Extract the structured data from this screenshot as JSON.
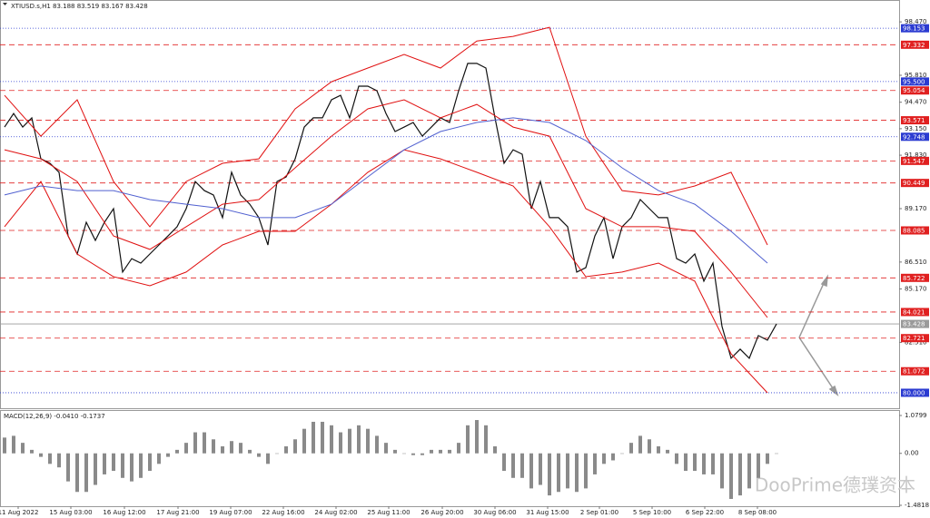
{
  "chart_data": [
    {
      "type": "line",
      "title": "XTIUSD.s,H1  83.188 83.519 83.167 83.428",
      "watermark": "DooPrime德璞资本",
      "xlim": [
        -0.5,
        98.5
      ],
      "ylim": [
        79.23,
        99.56
      ],
      "xticks": [
        {
          "value": 1.5,
          "label": "11 Aug 2022"
        },
        {
          "value": 7.3,
          "label": "15 Aug 03:00"
        },
        {
          "value": 13.2,
          "label": "16 Aug 12:00"
        },
        {
          "value": 19.1,
          "label": "17 Aug 21:00"
        },
        {
          "value": 24.9,
          "label": "19 Aug 07:00"
        },
        {
          "value": 30.7,
          "label": "22 Aug 16:00"
        },
        {
          "value": 36.5,
          "label": "24 Aug 02:00"
        },
        {
          "value": 42.3,
          "label": "25 Aug 11:00"
        },
        {
          "value": 48.2,
          "label": "26 Aug 20:00"
        },
        {
          "value": 54,
          "label": "30 Aug 06:00"
        },
        {
          "value": 59.8,
          "label": "31 Aug 15:00"
        },
        {
          "value": 65.5,
          "label": "2 Sep 01:00"
        },
        {
          "value": 71.3,
          "label": "5 Sep 10:00"
        },
        {
          "value": 77.1,
          "label": "6 Sep 22:00"
        },
        {
          "value": 82.9,
          "label": "8 Sep 08:00"
        }
      ],
      "yticks": [
        {
          "value": 98.47,
          "label": "98.470"
        },
        {
          "value": 95.81,
          "label": "95.810"
        },
        {
          "value": 94.47,
          "label": "94.470"
        },
        {
          "value": 93.15,
          "label": "93.150"
        },
        {
          "value": 91.83,
          "label": "91.830"
        },
        {
          "value": 89.17,
          "label": "89.170"
        },
        {
          "value": 86.51,
          "label": "86.510"
        },
        {
          "value": 85.17,
          "label": "85.170"
        },
        {
          "value": 82.51,
          "label": "82.510"
        }
      ],
      "levels": [
        {
          "value": 98.153,
          "color": "#2b3bd1"
        },
        {
          "value": 97.332,
          "color": "#e02020"
        },
        {
          "value": 95.5,
          "label": "95.500",
          "color": "#2b3bd1"
        },
        {
          "value": 95.054,
          "color": "#e02020"
        },
        {
          "value": 93.571,
          "color": "#e02020"
        },
        {
          "value": 92.748,
          "color": "#2b3bd1"
        },
        {
          "value": 91.547,
          "color": "#e02020"
        },
        {
          "value": 90.449,
          "color": "#e02020"
        },
        {
          "value": 88.085,
          "color": "#e02020"
        },
        {
          "value": 85.722,
          "color": "#e02020"
        },
        {
          "value": 84.021,
          "color": "#e02020"
        },
        {
          "value": 83.428,
          "color": "#9a9a9a"
        },
        {
          "value": 82.721,
          "color": "#e02020"
        },
        {
          "value": 81.072,
          "color": "#e02020"
        },
        {
          "value": 80,
          "label": "80.000",
          "color": "#2b3bd1"
        }
      ],
      "series": [
        {
          "name": "Close",
          "color": "#111111",
          "values": [
            93.23,
            93.91,
            93.23,
            93.69,
            91.65,
            91.43,
            90.98,
            87.81,
            86.91,
            88.49,
            87.59,
            88.49,
            89.17,
            86.01,
            86.68,
            86.46,
            86.91,
            87.36,
            87.81,
            88.27,
            89.17,
            90.52,
            90.07,
            89.85,
            88.72,
            90.98,
            89.85,
            89.39,
            88.72,
            87.36,
            90.52,
            90.75,
            91.65,
            93.23,
            93.69,
            93.69,
            94.59,
            94.81,
            93.69,
            95.27,
            95.27,
            95.04,
            93.91,
            93.01,
            93.23,
            93.46,
            92.78,
            93.23,
            93.69,
            93.46,
            95.04,
            96.4,
            96.4,
            96.17,
            93.69,
            91.43,
            92.1,
            91.88,
            89.17,
            90.52,
            88.72,
            88.72,
            88.27,
            86.01,
            86.23,
            87.81,
            88.72,
            86.68,
            88.27,
            88.72,
            89.62,
            89.17,
            88.72,
            88.72,
            86.68,
            86.46,
            86.91,
            85.56,
            86.46,
            83.3,
            81.72,
            82.17,
            81.72,
            82.85,
            82.62,
            83.428
          ]
        },
        {
          "name": "Upper",
          "color": "#e01010",
          "x": [
            0,
            4,
            8,
            12,
            16,
            20,
            24,
            28,
            32,
            36,
            40,
            44,
            48,
            52,
            56,
            60,
            64,
            68,
            72,
            76,
            80,
            84
          ],
          "values": [
            94.81,
            92.78,
            94.59,
            90.52,
            88.27,
            90.52,
            91.43,
            91.65,
            94.14,
            95.49,
            96.17,
            96.85,
            96.17,
            97.52,
            97.75,
            98.2,
            92.78,
            90.07,
            89.85,
            90.3,
            90.98,
            87.36
          ]
        },
        {
          "name": "Middle",
          "color": "#e01010",
          "x": [
            0,
            4,
            8,
            12,
            16,
            20,
            24,
            28,
            32,
            36,
            40,
            44,
            48,
            52,
            56,
            60,
            64,
            68,
            72,
            76,
            80,
            84
          ],
          "values": [
            92.1,
            91.65,
            90.52,
            87.81,
            87.14,
            88.27,
            89.39,
            89.62,
            91.2,
            92.78,
            94.14,
            94.59,
            93.69,
            94.36,
            93.23,
            92.78,
            89.17,
            88.27,
            88.27,
            88.04,
            86.01,
            83.75
          ]
        },
        {
          "name": "Lower",
          "color": "#e01010",
          "x": [
            0,
            4,
            8,
            12,
            16,
            20,
            24,
            28,
            32,
            36,
            40,
            44,
            48,
            52,
            56,
            60,
            64,
            68,
            72,
            76,
            80,
            84
          ],
          "values": [
            88.27,
            90.52,
            86.91,
            85.78,
            85.33,
            86.01,
            87.36,
            88.04,
            88.04,
            89.39,
            90.98,
            92.1,
            91.65,
            90.98,
            90.3,
            88.27,
            85.78,
            86.01,
            86.46,
            85.56,
            81.94,
            80.0
          ]
        },
        {
          "name": "MA",
          "color": "#5060d0",
          "x": [
            0,
            4,
            8,
            12,
            16,
            20,
            24,
            28,
            32,
            36,
            40,
            44,
            48,
            52,
            56,
            60,
            64,
            68,
            72,
            76,
            80,
            84
          ],
          "values": [
            89.85,
            90.3,
            90.07,
            90.07,
            89.62,
            89.39,
            89.17,
            88.72,
            88.72,
            89.39,
            90.75,
            92.1,
            93.01,
            93.46,
            93.69,
            93.46,
            92.56,
            91.2,
            90.07,
            89.39,
            88.04,
            86.46
          ]
        }
      ]
    },
    {
      "type": "bar",
      "title": "MACD(12,26,9) -0.0410 -0.1737",
      "color": "#8a8a8a",
      "xlim": [
        -0.5,
        98.5
      ],
      "ylim": [
        -1.4818,
        1.0799
      ],
      "yticks": [
        1.0799,
        {
          "value": 0,
          "label": "0.00"
        },
        -1.4818
      ],
      "values": [
        0.45,
        0.5,
        0.3,
        0.1,
        -0.1,
        -0.3,
        -0.4,
        -0.8,
        -1.1,
        -1.1,
        -0.9,
        -0.6,
        -0.5,
        -0.7,
        -0.8,
        -0.7,
        -0.5,
        -0.3,
        -0.1,
        0.1,
        0.3,
        0.6,
        0.6,
        0.4,
        0.2,
        0.35,
        0.3,
        0.1,
        -0.1,
        -0.3,
        0.0,
        0.2,
        0.4,
        0.7,
        0.9,
        0.9,
        0.8,
        0.6,
        0.7,
        0.8,
        0.7,
        0.5,
        0.3,
        0.1,
        0.0,
        -0.05,
        -0.05,
        0.1,
        0.1,
        0.1,
        0.3,
        0.8,
        0.95,
        0.8,
        0.2,
        -0.5,
        -0.7,
        -0.7,
        -1.0,
        -0.9,
        -1.2,
        -1.1,
        -1.0,
        -1.1,
        -1.0,
        -0.6,
        -0.3,
        -0.2,
        0.0,
        0.3,
        0.5,
        0.4,
        0.2,
        0.1,
        -0.3,
        -0.5,
        -0.5,
        -0.6,
        -0.6,
        -1.0,
        -1.3,
        -1.2,
        -1.0,
        -0.7,
        -0.3,
        0.0
      ]
    }
  ]
}
